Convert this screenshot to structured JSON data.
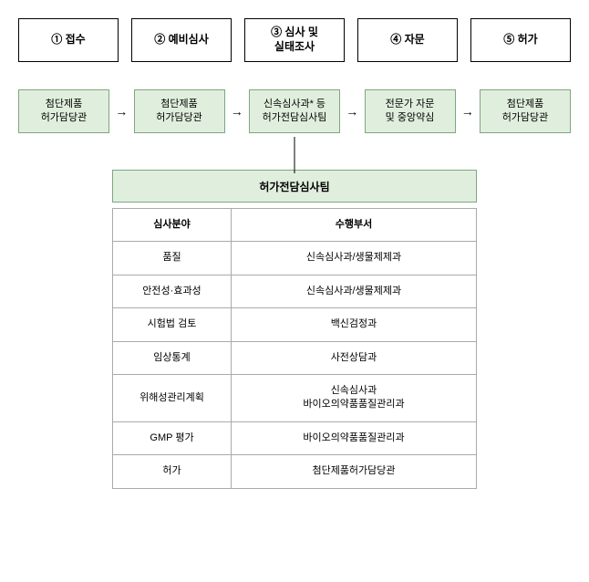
{
  "steps": [
    {
      "label": "① 접수"
    },
    {
      "label": "② 예비심사"
    },
    {
      "label": "③ 심사 및\n실태조사"
    },
    {
      "label": "④ 자문"
    },
    {
      "label": "⑤ 허가"
    }
  ],
  "greenBoxes": [
    {
      "label": "첨단제품\n허가담당관"
    },
    {
      "label": "첨단제품\n허가담당관"
    },
    {
      "label": "신속심사과* 등\n허가전담심사팀"
    },
    {
      "label": "전문가 자문\n및 중앙약심"
    },
    {
      "label": "첨단제품\n허가담당관"
    }
  ],
  "arrow": "→",
  "table": {
    "title": "허가전담심사팀",
    "headers": [
      "심사분야",
      "수행부서"
    ],
    "rows": [
      [
        "품질",
        "신속심사과/생물제제과"
      ],
      [
        "안전성·효과성",
        "신속심사과/생물제제과"
      ],
      [
        "시험법 검토",
        "백신검정과"
      ],
      [
        "임상통계",
        "사전상담과"
      ],
      [
        "위해성관리계획",
        "신속심사과\n바이오의약품품질관리과"
      ],
      [
        "GMP 평가",
        "바이오의약품품질관리과"
      ],
      [
        "허가",
        "첨단제품허가담당관"
      ]
    ]
  },
  "styling": {
    "stepBox": {
      "border": "#000000",
      "bg": "#ffffff",
      "fontSize": 12,
      "fontWeight": "bold"
    },
    "greenBox": {
      "border": "#7fa67f",
      "bg": "#e0efdd",
      "fontSize": 11
    },
    "tableTitle": {
      "border": "#7fa67f",
      "bg": "#e0efdd",
      "fontSize": 12,
      "fontWeight": "bold"
    },
    "tableCell": {
      "border": "#aaaaaa",
      "fontSize": 11
    },
    "pageBg": "#ffffff"
  }
}
